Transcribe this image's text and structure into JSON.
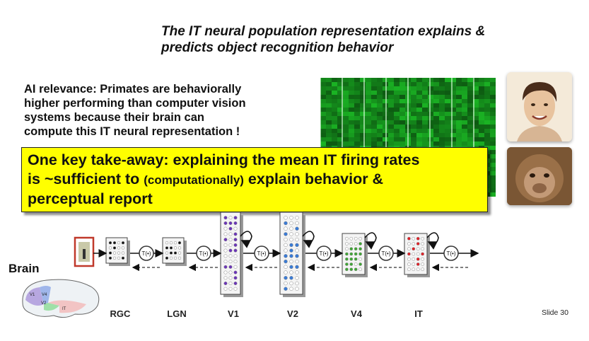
{
  "title_lines": [
    "The IT neural population representation explains &",
    "predicts object recognition behavior"
  ],
  "ai_relevance_lines": [
    "AI relevance:  Primates are behaviorally",
    "higher performing than computer vision",
    "systems because their brain can",
    "compute this IT neural representation !"
  ],
  "callout": {
    "line1": "One key take-away: explaining the mean IT firing rates",
    "line2_start": "is ~sufficient to ",
    "line2_small": "(computationally)",
    "line2_end": " explain behavior &",
    "line3": "perceptual report"
  },
  "brain_label": "Brain",
  "brain_area_labels": [
    "V1",
    "V4",
    "V2",
    "IT"
  ],
  "transform_label": "T(•)",
  "stages": [
    "RGC",
    "LGN",
    "V1",
    "V2",
    "V4",
    "IT"
  ],
  "slide_number": "Slide  30",
  "colors": {
    "callout_bg": "#ffff00",
    "grid_green": "#0f7f20",
    "v1_dots": "#6b35b8",
    "v2_dots": "#3a7bd5",
    "v4_dots": "#3fa535",
    "it_dots": "#e01f26",
    "stimulus_frame": "#c0392b"
  },
  "icons": [
    "face-photo",
    "monkey-photo",
    "brain-diagram",
    "stimulus-thumbnail"
  ]
}
